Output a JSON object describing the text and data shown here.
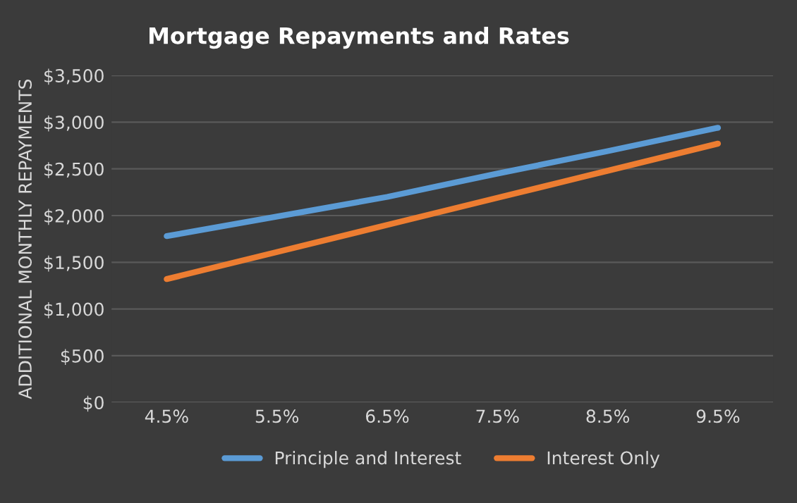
{
  "chart_data": {
    "type": "line",
    "title": "Mortgage Repayments and Rates",
    "ylabel": "ADDITIONAL MONTHLY REPAYMENTS",
    "categories": [
      "4.5%",
      "5.5%",
      "6.5%",
      "7.5%",
      "8.5%",
      "9.5%"
    ],
    "series": [
      {
        "name": "Principle and Interest",
        "color": "#5b9bd5",
        "values": [
          1780,
          1990,
          2200,
          2450,
          2690,
          2940
        ]
      },
      {
        "name": "Interest Only",
        "color": "#ed7d31",
        "values": [
          1320,
          1610,
          1900,
          2190,
          2480,
          2770
        ]
      }
    ],
    "ylim": [
      0,
      3500
    ],
    "yticks": [
      {
        "value": 0,
        "label": "$0"
      },
      {
        "value": 500,
        "label": "$500"
      },
      {
        "value": 1000,
        "label": "$1,000"
      },
      {
        "value": 1500,
        "label": "$1,500"
      },
      {
        "value": 2000,
        "label": "$2,000"
      },
      {
        "value": 2500,
        "label": "$2,500"
      },
      {
        "value": 3000,
        "label": "$3,000"
      },
      {
        "value": 3500,
        "label": "$3,500"
      }
    ],
    "grid": "y",
    "legend": "bottom",
    "marker": "none",
    "line_style": "solid"
  }
}
